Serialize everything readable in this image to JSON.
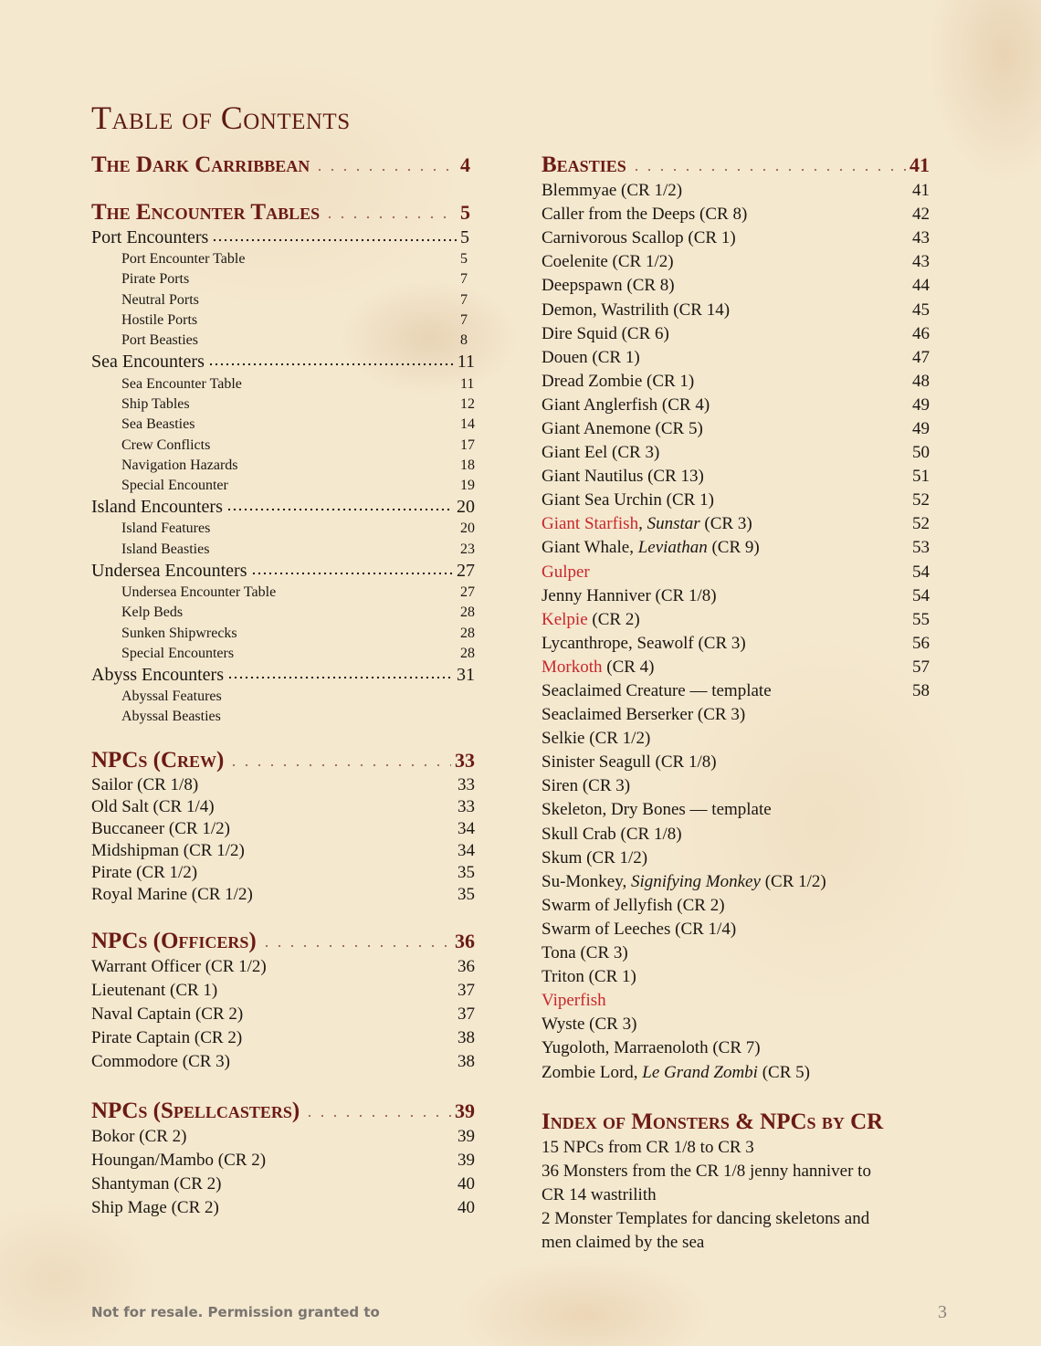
{
  "title": "Table of Contents",
  "left": [
    {
      "type": "h",
      "label": "The Dark Carribbean",
      "page": "4"
    },
    {
      "type": "h",
      "label": "The Encounter Tables",
      "page": "5",
      "gap": 22
    },
    {
      "type": "main",
      "label": "Port Encounters",
      "page": "5"
    },
    {
      "type": "sub",
      "label": "Port Encounter Table",
      "page": "5"
    },
    {
      "type": "sub",
      "label": "Pirate Ports",
      "page": "7"
    },
    {
      "type": "sub",
      "label": "Neutral Ports",
      "page": "7"
    },
    {
      "type": "sub",
      "label": "Hostile Ports",
      "page": "7"
    },
    {
      "type": "sub",
      "label": "Port Beasties",
      "page": "8"
    },
    {
      "type": "main",
      "label": "Sea Encounters",
      "page": "11"
    },
    {
      "type": "sub",
      "label": "Sea Encounter Table",
      "page": "11"
    },
    {
      "type": "sub",
      "label": "Ship Tables",
      "page": "12"
    },
    {
      "type": "sub",
      "label": "Sea Beasties",
      "page": "14"
    },
    {
      "type": "sub",
      "label": "Crew Conflicts",
      "page": "17"
    },
    {
      "type": "sub",
      "label": "Navigation Hazards",
      "page": "18"
    },
    {
      "type": "sub",
      "label": "Special Encounter",
      "page": "19"
    },
    {
      "type": "main",
      "label": "Island Encounters",
      "page": "20"
    },
    {
      "type": "sub",
      "label": "Island Features",
      "page": "20"
    },
    {
      "type": "sub",
      "label": "Island Beasties",
      "page": "23"
    },
    {
      "type": "main",
      "label": "Undersea Encounters",
      "page": "27"
    },
    {
      "type": "sub",
      "label": "Undersea Encounter Table",
      "page": "27"
    },
    {
      "type": "sub",
      "label": "Kelp Beds",
      "page": "28"
    },
    {
      "type": "sub",
      "label": "Sunken Shipwrecks",
      "page": "28"
    },
    {
      "type": "sub",
      "label": "Special Encounters",
      "page": "28"
    },
    {
      "type": "main",
      "label": "Abyss Encounters",
      "page": "31"
    },
    {
      "type": "sub",
      "label": "Abyssal Features",
      "page": ""
    },
    {
      "type": "sub",
      "label": "Abyssal Beasties",
      "page": ""
    },
    {
      "type": "h",
      "label": "NPCs (Crew)",
      "page": "33",
      "gap": 21
    },
    {
      "type": "item",
      "h": 24,
      "label": "Sailor (CR 1/8)",
      "page": "33"
    },
    {
      "type": "item",
      "h": 24,
      "label": "Old Salt (CR 1/4)",
      "page": "33"
    },
    {
      "type": "item",
      "h": 24,
      "label": "Buccaneer (CR 1/2)",
      "page": "34"
    },
    {
      "type": "item",
      "h": 24,
      "label": "Midshipman (CR 1/2)",
      "page": "34"
    },
    {
      "type": "item",
      "h": 24,
      "label": "Pirate (CR 1/2)",
      "page": "35"
    },
    {
      "type": "item",
      "h": 24,
      "label": "Royal Marine (CR 1/2)",
      "page": "35"
    },
    {
      "type": "h",
      "label": "NPCs (Officers)",
      "page": "36",
      "gap": 24
    },
    {
      "type": "item",
      "h": 26,
      "label": "Warrant Officer (CR 1/2)",
      "page": "36"
    },
    {
      "type": "item",
      "h": 26,
      "label": "Lieutenant (CR 1)",
      "page": "37"
    },
    {
      "type": "item",
      "h": 26,
      "label": "Naval Captain (CR 2)",
      "page": "37"
    },
    {
      "type": "item",
      "h": 26,
      "label": "Pirate Captain (CR 2)",
      "page": "38"
    },
    {
      "type": "item",
      "h": 26,
      "label": "Commodore (CR 3)",
      "page": "38"
    },
    {
      "type": "h",
      "label": "NPCs (Spellcasters)",
      "page": "39",
      "gap": 26
    },
    {
      "type": "item",
      "h": 26,
      "label": "Bokor (CR 2)",
      "page": "39"
    },
    {
      "type": "item",
      "h": 26,
      "label": "Houngan/Mambo (CR 2)",
      "page": "39"
    },
    {
      "type": "item",
      "h": 26,
      "label": "Shantyman (CR 2)",
      "page": "40"
    },
    {
      "type": "item",
      "h": 26,
      "label": "Ship Mage (CR 2)",
      "page": "40"
    }
  ],
  "right": [
    {
      "type": "h",
      "label": "Beasties",
      "page": "41"
    },
    {
      "type": "item",
      "h": 26.1,
      "label": "Blemmyae (CR 1/2)",
      "page": "41"
    },
    {
      "type": "item",
      "h": 26.1,
      "label": "Caller from the Deeps (CR 8)",
      "page": "42"
    },
    {
      "type": "item",
      "h": 26.1,
      "label": "Carnivorous Scallop (CR 1)",
      "page": "43"
    },
    {
      "type": "item",
      "h": 26.1,
      "label": "Coelenite (CR 1/2)",
      "page": "43"
    },
    {
      "type": "item",
      "h": 26.1,
      "label": "Deepspawn (CR 8)",
      "page": "44"
    },
    {
      "type": "item",
      "h": 26.1,
      "label": "Demon, Wastrilith (CR 14)",
      "page": "45"
    },
    {
      "type": "item",
      "h": 26.1,
      "label": "Dire Squid (CR 6)",
      "page": "46"
    },
    {
      "type": "item",
      "h": 26.1,
      "label": "Douen (CR 1)",
      "page": "47"
    },
    {
      "type": "item",
      "h": 26.1,
      "label": "Dread Zombie (CR 1)",
      "page": "48"
    },
    {
      "type": "item",
      "h": 26.1,
      "label": "Giant Anglerfish (CR 4)",
      "page": "49"
    },
    {
      "type": "item",
      "h": 26.1,
      "label": "Giant Anemone (CR 5)",
      "page": "49"
    },
    {
      "type": "item",
      "h": 26.1,
      "label": "Giant Eel (CR 3)",
      "page": "50"
    },
    {
      "type": "item",
      "h": 26.1,
      "label": "Giant Nautilus (CR 13)",
      "page": "51"
    },
    {
      "type": "item",
      "h": 26.1,
      "label": "Giant Sea Urchin (CR 1)",
      "page": "52"
    },
    {
      "type": "item",
      "h": 26.1,
      "parts": [
        {
          "t": "Giant Starfish",
          "red": true
        },
        {
          "t": ", "
        },
        {
          "t": "Sunstar",
          "i": true
        },
        {
          "t": " (CR 3)"
        }
      ],
      "page": "52"
    },
    {
      "type": "item",
      "h": 26.1,
      "parts": [
        {
          "t": "Giant Whale, "
        },
        {
          "t": "Leviathan",
          "i": true
        },
        {
          "t": " (CR 9)"
        }
      ],
      "page": "53"
    },
    {
      "type": "item",
      "h": 26.1,
      "parts": [
        {
          "t": "Gulper",
          "red": true
        }
      ],
      "page": "54"
    },
    {
      "type": "item",
      "h": 26.1,
      "label": "Jenny Hanniver (CR 1/8)",
      "page": "54"
    },
    {
      "type": "item",
      "h": 26.1,
      "parts": [
        {
          "t": "Kelpie",
          "red": true
        },
        {
          "t": " (CR 2)"
        }
      ],
      "page": "55"
    },
    {
      "type": "item",
      "h": 26.1,
      "label": "Lycanthrope, Seawolf (CR 3)",
      "page": "56"
    },
    {
      "type": "item",
      "h": 26.1,
      "parts": [
        {
          "t": "Morkoth",
          "red": true
        },
        {
          "t": " (CR 4)"
        }
      ],
      "page": "57"
    },
    {
      "type": "item",
      "h": 26.1,
      "label": "Seaclaimed Creature — template",
      "page": "58"
    },
    {
      "type": "item",
      "h": 26.1,
      "label": "Seaclaimed Berserker (CR 3)",
      "page": ""
    },
    {
      "type": "item",
      "h": 26.1,
      "label": "Selkie (CR 1/2)",
      "page": ""
    },
    {
      "type": "item",
      "h": 26.1,
      "label": "Sinister Seagull (CR 1/8)",
      "page": ""
    },
    {
      "type": "item",
      "h": 26.1,
      "label": "Siren (CR 3)",
      "page": ""
    },
    {
      "type": "item",
      "h": 26.1,
      "label": "Skeleton, Dry Bones — template",
      "page": ""
    },
    {
      "type": "item",
      "h": 26.1,
      "label": "Skull Crab (CR 1/8)",
      "page": ""
    },
    {
      "type": "item",
      "h": 26.1,
      "label": "Skum (CR 1/2)",
      "page": ""
    },
    {
      "type": "item",
      "h": 26.1,
      "parts": [
        {
          "t": "Su-Monkey, "
        },
        {
          "t": "Signifying Monkey",
          "i": true
        },
        {
          "t": " (CR 1/2)"
        }
      ],
      "page": ""
    },
    {
      "type": "item",
      "h": 26.1,
      "label": "Swarm of Jellyfish (CR 2)",
      "page": ""
    },
    {
      "type": "item",
      "h": 26.1,
      "label": "Swarm of Leeches (CR 1/4)",
      "page": ""
    },
    {
      "type": "item",
      "h": 26.1,
      "label": "Tona (CR 3)",
      "page": ""
    },
    {
      "type": "item",
      "h": 26.1,
      "label": "Triton (CR 1)",
      "page": ""
    },
    {
      "type": "item",
      "h": 26.1,
      "parts": [
        {
          "t": "Viperfish",
          "red": true
        }
      ],
      "page": ""
    },
    {
      "type": "item",
      "h": 26.1,
      "label": "Wyste (CR 3)",
      "page": ""
    },
    {
      "type": "item",
      "h": 26.1,
      "label": "Yugoloth, Marraenoloth (CR 7)",
      "page": ""
    },
    {
      "type": "item",
      "h": 26.1,
      "parts": [
        {
          "t": "Zombie Lord, "
        },
        {
          "t": "Le Grand Zombi",
          "i": true
        },
        {
          "t": " (CR 5)"
        }
      ],
      "page": ""
    },
    {
      "type": "h",
      "label": "Index of Monsters & NPCs by CR",
      "page": "",
      "gap": 26,
      "noleader": true
    },
    {
      "type": "item",
      "h": 26,
      "label": "15 NPCs from CR 1/8 to CR 3",
      "page": ""
    },
    {
      "type": "item",
      "h": 26,
      "label": "36 Monsters from the CR 1/8 jenny hanniver to",
      "page": ""
    },
    {
      "type": "item",
      "h": 26,
      "label": "CR 14 wastrilith",
      "page": ""
    },
    {
      "type": "item",
      "h": 26,
      "label": "2 Monster Templates for dancing skeletons and",
      "page": ""
    },
    {
      "type": "item",
      "h": 26,
      "label": "men claimed by the sea",
      "page": ""
    }
  ],
  "footer": {
    "notice": "Not for resale. Permission granted to",
    "page_number": "3"
  },
  "colors": {
    "heading": "#6b1a14",
    "link": "#c8262b",
    "text": "#1c1713"
  }
}
